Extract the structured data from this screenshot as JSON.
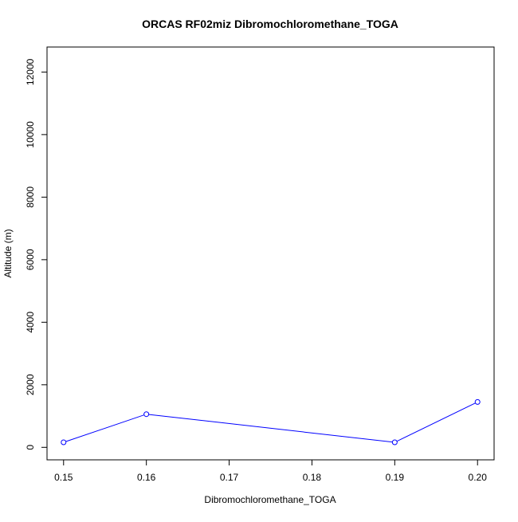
{
  "chart_data": {
    "type": "line",
    "title": "ORCAS RF02miz Dibromochloromethane_TOGA",
    "xlabel": "Dibromochloromethane_TOGA",
    "ylabel": "Altitude (m)",
    "xlim": [
      0.148,
      0.202
    ],
    "ylim": [
      -400,
      12800
    ],
    "xticks": [
      0.15,
      0.16,
      0.17,
      0.18,
      0.19,
      0.2
    ],
    "xtick_labels": [
      "0.15",
      "0.16",
      "0.17",
      "0.18",
      "0.19",
      "0.20"
    ],
    "yticks": [
      0,
      2000,
      4000,
      6000,
      8000,
      10000,
      12000
    ],
    "ytick_labels": [
      "0",
      "2000",
      "4000",
      "6000",
      "8000",
      "10000",
      "12000"
    ],
    "grid": false,
    "legend": "none",
    "series": [
      {
        "color": "#0000ff",
        "marker": "open-circle",
        "points": [
          {
            "x": 0.15,
            "y": 160
          },
          {
            "x": 0.16,
            "y": 1060
          },
          {
            "x": 0.19,
            "y": 160
          },
          {
            "x": 0.2,
            "y": 1450
          }
        ]
      }
    ]
  }
}
